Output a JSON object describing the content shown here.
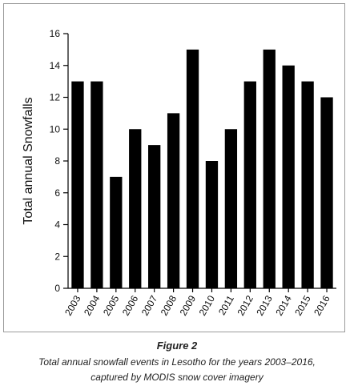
{
  "chart_data": {
    "type": "bar",
    "categories": [
      "2003",
      "2004",
      "2005",
      "2006",
      "2007",
      "2008",
      "2009",
      "2010",
      "2011",
      "2012",
      "2013",
      "2014",
      "2015",
      "2016"
    ],
    "values": [
      13,
      13,
      7,
      10,
      9,
      11,
      15,
      8,
      10,
      13,
      15,
      14,
      13,
      12
    ],
    "xlabel": "",
    "ylabel": "Total annual Snowfalls",
    "ylim": [
      0,
      16
    ],
    "yticks": [
      0,
      2,
      4,
      6,
      8,
      10,
      12,
      14,
      16
    ],
    "bar_color": "#000000",
    "grid": false
  },
  "figure": {
    "label": "Figure 2",
    "caption_line1": "Total annual snowfall events in Lesotho for the years 2003–2016,",
    "caption_line2": "captured by MODIS snow cover imagery"
  }
}
